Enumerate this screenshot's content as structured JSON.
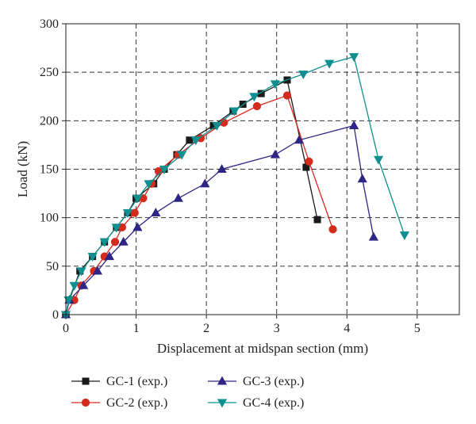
{
  "chart_data": {
    "type": "line",
    "title": "",
    "xlabel": "Displacement at midspan section (mm)",
    "ylabel": "Load (kN)",
    "xlim": [
      0,
      5.6
    ],
    "ylim": [
      0,
      300
    ],
    "xticks": [
      0,
      1,
      2,
      3,
      4,
      5
    ],
    "yticks": [
      0,
      50,
      100,
      150,
      200,
      250,
      300
    ],
    "grid": true,
    "legend_position": "bottom",
    "series": [
      {
        "name": "GC-1 (exp.)",
        "color": "#1a1a1a",
        "marker": "square",
        "points": [
          [
            0,
            0
          ],
          [
            0.05,
            15
          ],
          [
            0.2,
            45
          ],
          [
            0.38,
            60
          ],
          [
            0.55,
            75
          ],
          [
            0.72,
            90
          ],
          [
            0.88,
            105
          ],
          [
            1.0,
            120
          ],
          [
            1.25,
            135
          ],
          [
            1.4,
            150
          ],
          [
            1.58,
            165
          ],
          [
            1.76,
            180
          ],
          [
            2.1,
            195
          ],
          [
            2.38,
            210
          ],
          [
            2.52,
            217
          ],
          [
            2.78,
            228
          ],
          [
            3.15,
            242
          ],
          [
            3.42,
            152
          ],
          [
            3.58,
            98
          ]
        ]
      },
      {
        "name": "GC-2 (exp.)",
        "color": "#d42b1e",
        "marker": "circle",
        "points": [
          [
            0,
            0
          ],
          [
            0.12,
            15
          ],
          [
            0.22,
            30
          ],
          [
            0.4,
            45
          ],
          [
            0.55,
            60
          ],
          [
            0.7,
            75
          ],
          [
            0.8,
            90
          ],
          [
            0.98,
            105
          ],
          [
            1.1,
            120
          ],
          [
            1.22,
            135
          ],
          [
            1.32,
            148
          ],
          [
            1.6,
            165
          ],
          [
            1.92,
            182
          ],
          [
            2.25,
            198
          ],
          [
            2.72,
            215
          ],
          [
            3.15,
            226
          ],
          [
            3.46,
            158
          ],
          [
            3.8,
            88
          ]
        ]
      },
      {
        "name": "GC-3 (exp.)",
        "color": "#2e2585",
        "marker": "triangle-up",
        "points": [
          [
            0,
            0
          ],
          [
            0.05,
            15
          ],
          [
            0.25,
            30
          ],
          [
            0.45,
            45
          ],
          [
            0.62,
            60
          ],
          [
            0.82,
            75
          ],
          [
            1.02,
            90
          ],
          [
            1.28,
            105
          ],
          [
            1.6,
            120
          ],
          [
            1.98,
            135
          ],
          [
            2.22,
            150
          ],
          [
            2.98,
            165
          ],
          [
            3.32,
            180
          ],
          [
            4.1,
            195
          ],
          [
            4.22,
            140
          ],
          [
            4.38,
            80
          ]
        ]
      },
      {
        "name": "GC-4 (exp.)",
        "color": "#0f8f8f",
        "marker": "triangle-down",
        "points": [
          [
            0,
            0
          ],
          [
            0.04,
            15
          ],
          [
            0.12,
            30
          ],
          [
            0.22,
            45
          ],
          [
            0.38,
            60
          ],
          [
            0.55,
            75
          ],
          [
            0.72,
            90
          ],
          [
            0.88,
            105
          ],
          [
            1.02,
            120
          ],
          [
            1.18,
            135
          ],
          [
            1.4,
            150
          ],
          [
            1.65,
            165
          ],
          [
            1.85,
            180
          ],
          [
            2.15,
            195
          ],
          [
            2.4,
            210
          ],
          [
            2.68,
            225
          ],
          [
            2.98,
            238
          ],
          [
            3.38,
            248
          ],
          [
            3.75,
            259
          ],
          [
            4.1,
            266
          ],
          [
            4.45,
            160
          ],
          [
            4.82,
            82
          ]
        ]
      }
    ]
  }
}
